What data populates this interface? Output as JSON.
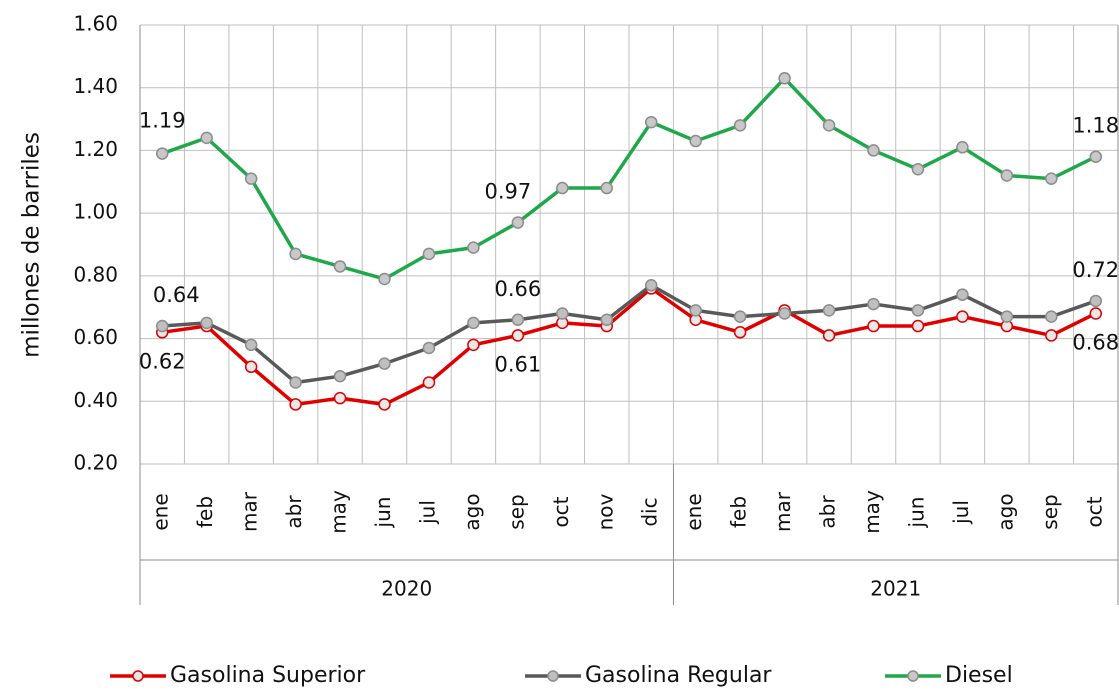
{
  "chart_data": {
    "type": "line",
    "y_label": "millones de barriles",
    "category_groups": [
      {
        "label": "2020",
        "categories": [
          "ene",
          "feb",
          "mar",
          "abr",
          "may",
          "jun",
          "jul",
          "ago",
          "sep",
          "oct",
          "nov",
          "dic"
        ]
      },
      {
        "label": "2021",
        "categories": [
          "ene",
          "feb",
          "mar",
          "abr",
          "may",
          "jun",
          "jul",
          "ago",
          "sep",
          "oct"
        ]
      }
    ],
    "series": [
      {
        "name": "Gasolina Superior",
        "color": "#e00000",
        "marker_fill": "#e8e8e8",
        "values": [
          0.62,
          0.64,
          0.51,
          0.39,
          0.41,
          0.39,
          0.46,
          0.58,
          0.61,
          0.65,
          0.64,
          0.76,
          0.66,
          0.62,
          0.69,
          0.61,
          0.64,
          0.64,
          0.67,
          0.64,
          0.61,
          0.68
        ]
      },
      {
        "name": "Gasolina Regular",
        "color": "#595959",
        "marker_fill": "#bfbfbf",
        "values": [
          0.64,
          0.65,
          0.58,
          0.46,
          0.48,
          0.52,
          0.57,
          0.65,
          0.66,
          0.68,
          0.66,
          0.77,
          0.69,
          0.67,
          0.68,
          0.69,
          0.71,
          0.69,
          0.74,
          0.67,
          0.67,
          0.72
        ]
      },
      {
        "name": "Diesel",
        "color": "#1fa84a",
        "marker_fill": "#c8c8c8",
        "values": [
          1.19,
          1.24,
          1.11,
          0.87,
          0.83,
          0.79,
          0.87,
          0.89,
          0.97,
          1.08,
          1.08,
          1.29,
          1.23,
          1.28,
          1.43,
          1.28,
          1.2,
          1.14,
          1.21,
          1.12,
          1.11,
          1.18
        ]
      }
    ],
    "data_labels": [
      0,
      8,
      21
    ],
    "ylim": [
      0.2,
      1.6
    ],
    "yticks": [
      {
        "value": 0.2,
        "label": "0.20"
      },
      {
        "value": 0.4,
        "label": "0.40"
      },
      {
        "value": 0.6,
        "label": "0.60"
      },
      {
        "value": 0.8,
        "label": "0.80"
      },
      {
        "value": 1.0,
        "label": "1.00"
      },
      {
        "value": 1.2,
        "label": "1.20"
      },
      {
        "value": 1.4,
        "label": "1.40"
      },
      {
        "value": 1.6,
        "label": "1.60"
      }
    ],
    "grid": true,
    "legend": "bottom"
  }
}
